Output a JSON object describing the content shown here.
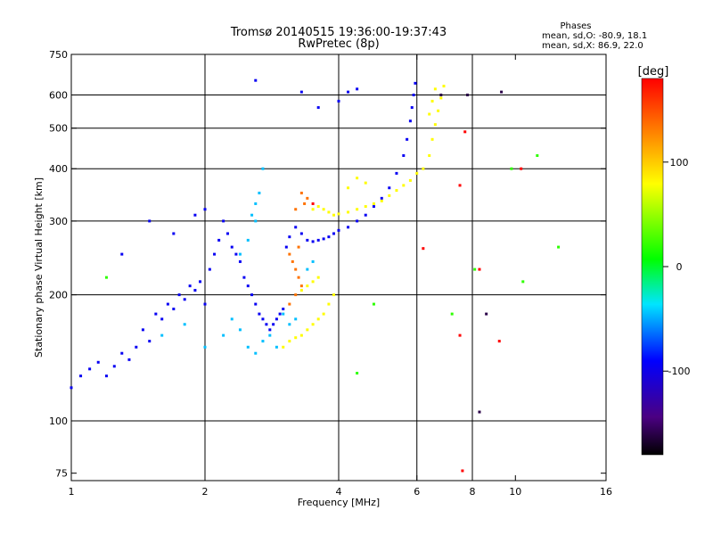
{
  "chart_data": {
    "type": "scatter",
    "title": "Tromsø 20140515 19:36:00-19:37:43",
    "subtitle": "RwPretec (8p)",
    "xlabel": "Frequency [MHz]",
    "ylabel": "Stationary phase Virtual Height [km]",
    "x_scale": "log",
    "y_scale": "log",
    "xlim": [
      1,
      16
    ],
    "ylim": [
      72,
      750
    ],
    "x_ticks": [
      1,
      2,
      4,
      6,
      8,
      10,
      16
    ],
    "y_ticks": [
      75,
      100,
      200,
      300,
      400,
      500,
      600,
      750
    ],
    "x_grid": [
      2,
      4,
      6,
      8
    ],
    "y_grid": [
      100,
      200,
      300,
      400,
      500,
      600
    ],
    "grid": true,
    "stats": {
      "heading": "Phases",
      "line_o": "mean, sd,O: -80.9, 18.1",
      "line_x": "mean, sd,X:  86.9, 22.0"
    },
    "colorbar": {
      "label": "[deg]",
      "ticks": [
        100,
        0,
        -100
      ],
      "range": [
        -180,
        180
      ],
      "colormap": "rainbow (black-purple-blue-cyan-green-yellow-red)"
    },
    "series": [
      {
        "color_phase": -95,
        "points": [
          [
            1.0,
            120
          ],
          [
            1.05,
            128
          ],
          [
            1.1,
            133
          ],
          [
            1.15,
            138
          ],
          [
            1.2,
            128
          ],
          [
            1.25,
            135
          ],
          [
            1.3,
            145
          ],
          [
            1.35,
            140
          ],
          [
            1.4,
            150
          ],
          [
            1.45,
            165
          ],
          [
            1.5,
            155
          ],
          [
            1.55,
            180
          ],
          [
            1.6,
            175
          ],
          [
            1.65,
            190
          ],
          [
            1.7,
            185
          ],
          [
            1.75,
            200
          ],
          [
            1.8,
            195
          ],
          [
            1.85,
            210
          ],
          [
            1.9,
            205
          ],
          [
            1.95,
            215
          ],
          [
            2.0,
            190
          ],
          [
            2.05,
            230
          ],
          [
            2.1,
            250
          ],
          [
            2.15,
            270
          ],
          [
            2.2,
            300
          ],
          [
            2.25,
            280
          ],
          [
            2.3,
            260
          ],
          [
            2.35,
            250
          ],
          [
            2.4,
            240
          ],
          [
            2.45,
            220
          ],
          [
            2.5,
            210
          ],
          [
            2.55,
            200
          ],
          [
            2.6,
            190
          ],
          [
            2.65,
            180
          ],
          [
            2.7,
            175
          ],
          [
            2.75,
            170
          ],
          [
            2.8,
            165
          ],
          [
            2.85,
            170
          ],
          [
            2.9,
            175
          ],
          [
            2.95,
            180
          ],
          [
            3.0,
            185
          ],
          [
            3.05,
            260
          ],
          [
            3.1,
            275
          ],
          [
            3.2,
            290
          ],
          [
            3.3,
            280
          ],
          [
            3.4,
            270
          ],
          [
            3.5,
            268
          ],
          [
            3.6,
            270
          ],
          [
            3.7,
            272
          ],
          [
            3.8,
            275
          ],
          [
            3.9,
            280
          ],
          [
            4.0,
            285
          ],
          [
            4.2,
            290
          ],
          [
            4.4,
            300
          ],
          [
            4.6,
            310
          ],
          [
            4.8,
            325
          ],
          [
            5.0,
            340
          ],
          [
            5.2,
            360
          ],
          [
            5.4,
            390
          ],
          [
            5.6,
            430
          ],
          [
            5.7,
            470
          ],
          [
            5.8,
            520
          ],
          [
            5.85,
            560
          ],
          [
            5.9,
            600
          ],
          [
            5.95,
            640
          ],
          [
            1.3,
            250
          ],
          [
            1.7,
            280
          ],
          [
            1.9,
            310
          ],
          [
            2.0,
            320
          ],
          [
            3.6,
            560
          ],
          [
            4.0,
            580
          ],
          [
            4.2,
            610
          ],
          [
            4.4,
            620
          ],
          [
            3.3,
            610
          ],
          [
            1.5,
            300
          ],
          [
            2.6,
            650
          ]
        ]
      },
      {
        "color_phase": -45,
        "points": [
          [
            1.6,
            160
          ],
          [
            1.8,
            170
          ],
          [
            2.0,
            150
          ],
          [
            2.2,
            160
          ],
          [
            2.3,
            175
          ],
          [
            2.4,
            165
          ],
          [
            2.5,
            150
          ],
          [
            2.6,
            145
          ],
          [
            2.7,
            155
          ],
          [
            2.8,
            160
          ],
          [
            2.9,
            150
          ],
          [
            2.4,
            250
          ],
          [
            2.5,
            270
          ],
          [
            2.6,
            300
          ],
          [
            2.65,
            350
          ],
          [
            2.7,
            400
          ],
          [
            2.6,
            330
          ],
          [
            2.55,
            310
          ],
          [
            3.0,
            180
          ],
          [
            3.1,
            170
          ],
          [
            3.2,
            175
          ],
          [
            3.4,
            230
          ],
          [
            3.5,
            240
          ]
        ]
      },
      {
        "color_phase": 80,
        "points": [
          [
            3.0,
            150
          ],
          [
            3.1,
            155
          ],
          [
            3.2,
            158
          ],
          [
            3.3,
            160
          ],
          [
            3.4,
            165
          ],
          [
            3.5,
            170
          ],
          [
            3.6,
            175
          ],
          [
            3.7,
            180
          ],
          [
            3.8,
            190
          ],
          [
            3.9,
            200
          ],
          [
            3.4,
            210
          ],
          [
            3.5,
            215
          ],
          [
            3.3,
            205
          ],
          [
            3.6,
            220
          ],
          [
            3.5,
            320
          ],
          [
            3.6,
            325
          ],
          [
            3.7,
            320
          ],
          [
            3.8,
            315
          ],
          [
            3.9,
            310
          ],
          [
            4.0,
            312
          ],
          [
            4.2,
            315
          ],
          [
            4.4,
            320
          ],
          [
            4.6,
            325
          ],
          [
            4.8,
            330
          ],
          [
            5.0,
            335
          ],
          [
            5.2,
            345
          ],
          [
            5.4,
            355
          ],
          [
            5.6,
            365
          ],
          [
            5.8,
            375
          ],
          [
            6.0,
            390
          ],
          [
            6.2,
            400
          ],
          [
            6.4,
            430
          ],
          [
            6.5,
            470
          ],
          [
            6.6,
            510
          ],
          [
            6.7,
            550
          ],
          [
            6.8,
            590
          ],
          [
            6.9,
            630
          ],
          [
            6.6,
            620
          ],
          [
            6.5,
            580
          ],
          [
            6.4,
            540
          ],
          [
            4.2,
            360
          ],
          [
            4.4,
            380
          ],
          [
            4.6,
            370
          ]
        ]
      },
      {
        "color_phase": 135,
        "points": [
          [
            3.1,
            250
          ],
          [
            3.15,
            240
          ],
          [
            3.2,
            230
          ],
          [
            3.25,
            220
          ],
          [
            3.3,
            210
          ],
          [
            3.2,
            200
          ],
          [
            3.1,
            190
          ],
          [
            3.25,
            260
          ],
          [
            3.3,
            350
          ],
          [
            3.4,
            340
          ],
          [
            3.35,
            330
          ],
          [
            3.2,
            320
          ]
        ]
      },
      {
        "color_phase": 180,
        "points": [
          [
            7.6,
            76
          ],
          [
            7.5,
            160
          ],
          [
            7.5,
            365
          ],
          [
            6.2,
            258
          ],
          [
            9.2,
            155
          ],
          [
            8.3,
            230
          ],
          [
            7.7,
            490
          ],
          [
            10.3,
            400
          ],
          [
            3.5,
            330
          ]
        ]
      },
      {
        "color_phase": -160,
        "points": [
          [
            8.3,
            105
          ],
          [
            9.3,
            610
          ],
          [
            8.6,
            180
          ],
          [
            7.8,
            600
          ],
          [
            6.8,
            600
          ]
        ]
      },
      {
        "color_phase": 20,
        "points": [
          [
            1.2,
            220
          ],
          [
            4.8,
            190
          ],
          [
            8.1,
            230
          ],
          [
            9.8,
            400
          ],
          [
            10.4,
            215
          ],
          [
            11.2,
            430
          ],
          [
            12.5,
            260
          ],
          [
            4.4,
            130
          ],
          [
            7.2,
            180
          ]
        ]
      }
    ]
  }
}
